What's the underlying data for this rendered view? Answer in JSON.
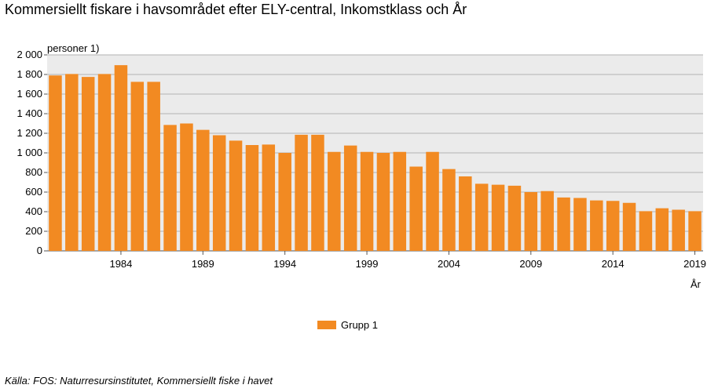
{
  "title": "Kommersiellt fiskare i havsområdet efter ELY-central, Inkomstklass och År",
  "source": "Källa: FOS: Naturresursinstitutet, Kommersiellt fiske i havet",
  "chart_data": {
    "type": "bar",
    "title": "Kommersiellt fiskare i havsområdet efter ELY-central, Inkomstklass och År",
    "ylabel": "personer 1)",
    "xlabel": "År",
    "ylim": [
      0,
      2000
    ],
    "yticks": [
      0,
      200,
      400,
      600,
      800,
      1000,
      1200,
      1400,
      1600,
      1800,
      2000
    ],
    "ytick_labels": [
      "0",
      "200",
      "400",
      "600",
      "800",
      "1 000",
      "1 200",
      "1 400",
      "1 600",
      "1 800",
      "2 000"
    ],
    "xtick_labels": [
      "1984",
      "1989",
      "1994",
      "1999",
      "2004",
      "2009",
      "2014",
      "2019"
    ],
    "grid": true,
    "legend_position": "bottom",
    "categories": [
      1980,
      1981,
      1982,
      1983,
      1984,
      1985,
      1986,
      1987,
      1988,
      1989,
      1990,
      1991,
      1992,
      1993,
      1994,
      1995,
      1996,
      1997,
      1998,
      1999,
      2000,
      2001,
      2002,
      2003,
      2004,
      2005,
      2006,
      2007,
      2008,
      2009,
      2010,
      2011,
      2012,
      2013,
      2014,
      2015,
      2016,
      2017,
      2018,
      2019
    ],
    "series": [
      {
        "name": "Grupp 1",
        "color": "#f28a22",
        "values": [
          1790,
          1805,
          1775,
          1805,
          1895,
          1725,
          1725,
          1285,
          1300,
          1235,
          1180,
          1125,
          1080,
          1085,
          1000,
          1185,
          1185,
          1010,
          1075,
          1010,
          1000,
          1010,
          860,
          1010,
          835,
          760,
          685,
          675,
          665,
          600,
          610,
          545,
          540,
          515,
          510,
          490,
          405,
          435,
          420,
          405
        ]
      }
    ]
  }
}
